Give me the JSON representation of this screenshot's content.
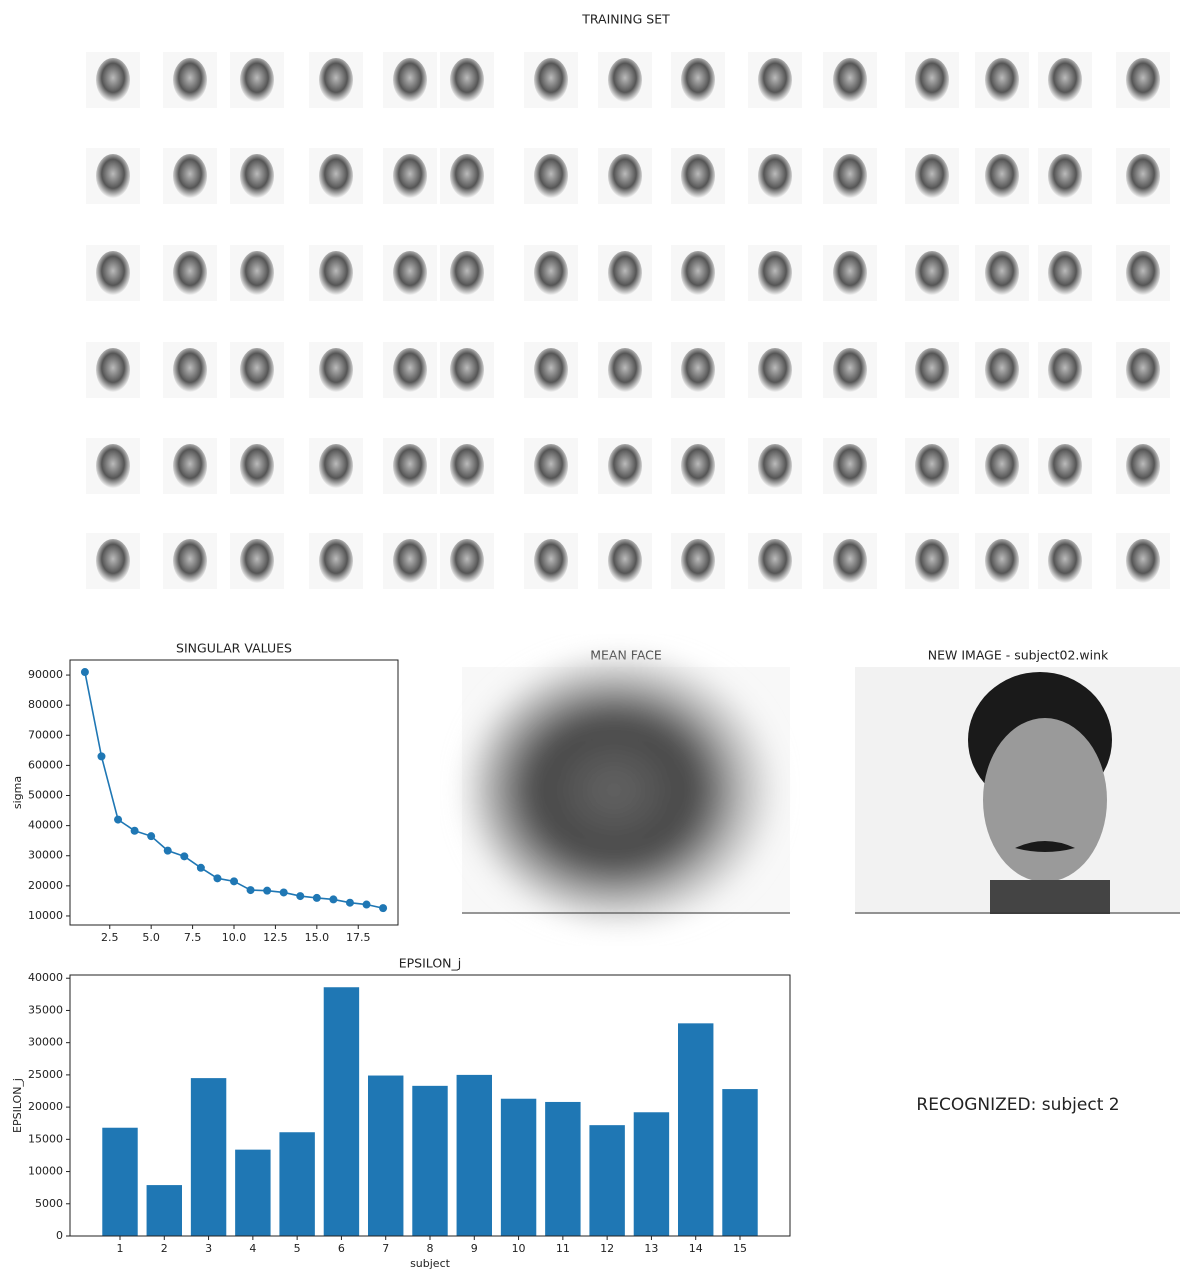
{
  "training_set": {
    "title": "TRAINING SET"
  },
  "mean_face": {
    "title": "MEAN FACE"
  },
  "new_image": {
    "title": "NEW IMAGE - subject02.wink"
  },
  "result": {
    "text": "RECOGNIZED: subject 2",
    "color": "#1a1aff"
  },
  "chart_data": [
    {
      "type": "line",
      "title": "SINGULAR VALUES",
      "y_label": "sigma",
      "color": "#1f77b4",
      "x": [
        1,
        2,
        3,
        4,
        5,
        6,
        7,
        8,
        9,
        10,
        11,
        12,
        13,
        14,
        15,
        16,
        17,
        18,
        19
      ],
      "values": [
        91000,
        63000,
        42000,
        38300,
        36500,
        31700,
        29800,
        26000,
        22500,
        21500,
        18600,
        18400,
        17800,
        16600,
        16000,
        15500,
        14400,
        13800,
        12600
      ],
      "xlim": [
        0.1,
        19.9
      ],
      "xticks": [
        2.5,
        {
          "value": 5,
          "label": "5.0"
        },
        7.5,
        {
          "value": 10,
          "label": "10.0"
        },
        12.5,
        {
          "value": 15,
          "label": "15.0"
        },
        17.5
      ],
      "ylim": [
        7000,
        95000
      ],
      "yticks": [
        10000,
        20000,
        30000,
        40000,
        50000,
        60000,
        70000,
        80000,
        90000
      ]
    },
    {
      "type": "bar",
      "title": "EPSILON_j",
      "x_label": "subject",
      "y_label": "EPSILON_j",
      "color": "#1f77b4",
      "categories": [
        "1",
        "2",
        "3",
        "4",
        "5",
        "6",
        "7",
        "8",
        "9",
        "10",
        "11",
        "12",
        "13",
        "14",
        "15"
      ],
      "values": [
        16800,
        7900,
        24500,
        13400,
        16100,
        38600,
        24900,
        23300,
        25000,
        21300,
        20800,
        17200,
        19200,
        33000,
        22800
      ],
      "ylim": [
        0,
        40500
      ],
      "yticks": [
        0,
        5000,
        10000,
        15000,
        20000,
        25000,
        30000,
        35000,
        40000
      ]
    }
  ]
}
